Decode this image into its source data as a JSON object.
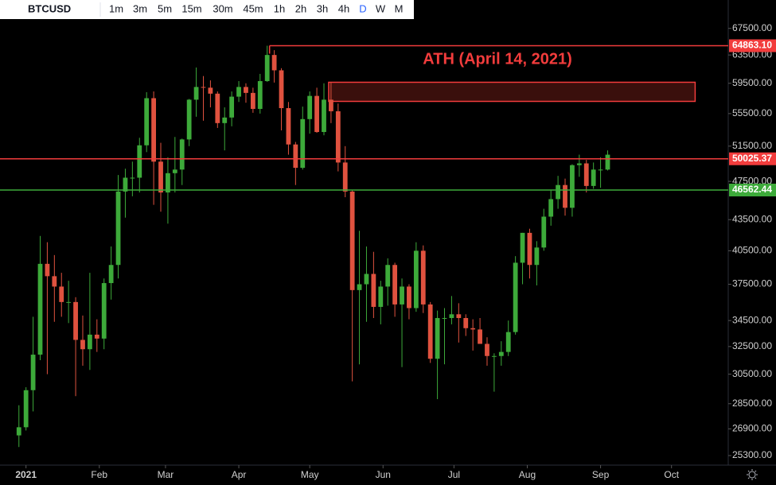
{
  "toolbar": {
    "symbol": "BTCUSD",
    "intervals": [
      "1m",
      "3m",
      "5m",
      "15m",
      "30m",
      "45m",
      "1h",
      "2h",
      "3h",
      "4h",
      "D",
      "W",
      "M"
    ],
    "active": 10
  },
  "chart_data": {
    "type": "candlestick",
    "x": [
      -3,
      0,
      3,
      6,
      9,
      12,
      15,
      18,
      21,
      24,
      27,
      30,
      33,
      36,
      39,
      42,
      45,
      48,
      51,
      54,
      57,
      60,
      63,
      66,
      69,
      72,
      75,
      78,
      81,
      84,
      87,
      90,
      93,
      96,
      99,
      102,
      105,
      108,
      111,
      114,
      117,
      120,
      123,
      126,
      129,
      132,
      135,
      138,
      141,
      144,
      147,
      150,
      153,
      156,
      159,
      162,
      165,
      168,
      171,
      174,
      177,
      180,
      183,
      186,
      189,
      192,
      195,
      198,
      201,
      204,
      207,
      210,
      213,
      216,
      219,
      222,
      225,
      228,
      231,
      234,
      237,
      240,
      243,
      246
    ],
    "open": [
      26500,
      27000,
      29400,
      31900,
      39300,
      38200,
      37300,
      36000,
      36000,
      33000,
      32300,
      33400,
      33100,
      37600,
      39200,
      46400,
      47900,
      47900,
      51600,
      57500,
      49700,
      46300,
      48400,
      48800,
      52300,
      57300,
      59000,
      58900,
      58100,
      54300,
      55000,
      57700,
      59000,
      58200,
      56100,
      59800,
      63500,
      61300,
      56200,
      51700,
      49000,
      54800,
      57800,
      53200,
      57300,
      55800,
      49600,
      46400,
      37000,
      37500,
      38400,
      35600,
      37300,
      39200,
      35800,
      37300,
      35500,
      40500,
      35800,
      31600,
      34700,
      34700,
      35000,
      34700,
      33900,
      33800,
      32700,
      31800,
      31800,
      32100,
      33600,
      39400,
      42200,
      39200,
      40800,
      43800,
      45600,
      47100,
      44700,
      49300,
      49500,
      47000,
      48800,
      48800
    ],
    "high": [
      28400,
      29600,
      34800,
      41900,
      41300,
      40100,
      38500,
      37800,
      36400,
      34900,
      38500,
      34600,
      38000,
      40900,
      48200,
      48900,
      49700,
      52500,
      58300,
      58400,
      51900,
      50200,
      52600,
      52400,
      57400,
      61700,
      60500,
      59900,
      58400,
      56300,
      58400,
      59800,
      59500,
      58900,
      60800,
      64863.1,
      64200,
      61600,
      57000,
      52000,
      56400,
      58400,
      58900,
      59500,
      59600,
      56800,
      51500,
      46600,
      42400,
      40900,
      40400,
      37800,
      39800,
      39400,
      38000,
      37500,
      41300,
      41000,
      36000,
      35300,
      35500,
      36500,
      35900,
      35000,
      34600,
      34700,
      33200,
      32000,
      32900,
      34500,
      40000,
      42200,
      42600,
      41400,
      44600,
      46600,
      48100,
      47800,
      49400,
      50500,
      49900,
      49600,
      50200,
      51000
    ],
    "low": [
      25800,
      26800,
      28000,
      31500,
      30500,
      34400,
      34800,
      34300,
      29000,
      31100,
      30800,
      32100,
      32300,
      36200,
      38000,
      43700,
      45900,
      46300,
      50800,
      45000,
      44300,
      43100,
      46300,
      47100,
      51500,
      55100,
      54600,
      56300,
      53700,
      51000,
      53900,
      57000,
      56900,
      55600,
      55500,
      59700,
      59600,
      53400,
      50500,
      47100,
      48800,
      53000,
      53100,
      52800,
      54300,
      48600,
      45800,
      30000,
      31200,
      34400,
      34700,
      34200,
      35700,
      34800,
      31000,
      34600,
      35200,
      35100,
      31300,
      28800,
      31200,
      34200,
      32800,
      33300,
      32200,
      32700,
      31100,
      29300,
      31100,
      31800,
      33400,
      37500,
      38000,
      37400,
      40500,
      42900,
      44600,
      43900,
      43800,
      48000,
      46300,
      46700,
      46800,
      48700
    ],
    "close": [
      27000,
      29400,
      31900,
      39300,
      38200,
      37300,
      36000,
      36000,
      33000,
      32300,
      33400,
      33100,
      37600,
      39200,
      46400,
      47900,
      47900,
      51600,
      57500,
      49700,
      46300,
      48400,
      48800,
      52300,
      57300,
      59000,
      58900,
      58100,
      54300,
      55000,
      57700,
      59000,
      58200,
      56100,
      59800,
      63500,
      61300,
      56200,
      51700,
      49000,
      54800,
      57800,
      53200,
      57300,
      55800,
      49600,
      46400,
      37000,
      37500,
      38400,
      35600,
      37300,
      39200,
      35800,
      37300,
      35500,
      40500,
      35800,
      31600,
      34700,
      34700,
      35000,
      34700,
      33900,
      33800,
      32700,
      31800,
      31800,
      32100,
      33600,
      39400,
      42200,
      39200,
      40800,
      43800,
      45600,
      47100,
      44700,
      49300,
      49500,
      47000,
      48800,
      48800,
      50500
    ],
    "up_color": "#3daa3a",
    "down_color": "#e0523f",
    "log_y": true,
    "grid": false,
    "xlim": [
      -11,
      297
    ],
    "xticks": [
      {
        "value": 0,
        "label": "2021"
      },
      {
        "value": 31,
        "label": "Feb"
      },
      {
        "value": 59,
        "label": "Mar"
      },
      {
        "value": 90,
        "label": "Apr"
      },
      {
        "value": 120,
        "label": "May"
      },
      {
        "value": 151,
        "label": "Jun"
      },
      {
        "value": 181,
        "label": "Jul"
      },
      {
        "value": 212,
        "label": "Aug"
      },
      {
        "value": 243,
        "label": "Sep"
      },
      {
        "value": 273,
        "label": "Oct"
      }
    ],
    "ylim": [
      24750,
      70100
    ],
    "yticks": [
      {
        "value": 25300,
        "label": "25300.00"
      },
      {
        "value": 26900,
        "label": "26900.00"
      },
      {
        "value": 28500,
        "label": "28500.00"
      },
      {
        "value": 30500,
        "label": "30500.00"
      },
      {
        "value": 32500,
        "label": "32500.00"
      },
      {
        "value": 34500,
        "label": "34500.00"
      },
      {
        "value": 37500,
        "label": "37500.00"
      },
      {
        "value": 40500,
        "label": "40500.00"
      },
      {
        "value": 43500,
        "label": "43500.00"
      },
      {
        "value": 47500,
        "label": "47500.00"
      },
      {
        "value": 51500,
        "label": "51500.00"
      },
      {
        "value": 55500,
        "label": "55500.00"
      },
      {
        "value": 59500,
        "label": "59500.00"
      },
      {
        "value": 63500,
        "label": "63500.00"
      },
      {
        "value": 67500,
        "label": "67500.00"
      }
    ],
    "levels": [
      {
        "price": 64863.1,
        "label": "64863.10",
        "color": "#f23c3c",
        "x_start": 103
      },
      {
        "price": 50025.37,
        "label": "50025.37",
        "color": "#f23c3c",
        "x_start": -11
      },
      {
        "price": 46562.44,
        "label": "46562.44",
        "color": "#3daa3a",
        "x_start": -11
      }
    ],
    "zone": {
      "x": [
        128,
        283
      ],
      "price": [
        57080,
        59640
      ],
      "color": "#f23c3c"
    },
    "annotation": "ATH (April 14, 2021)"
  }
}
